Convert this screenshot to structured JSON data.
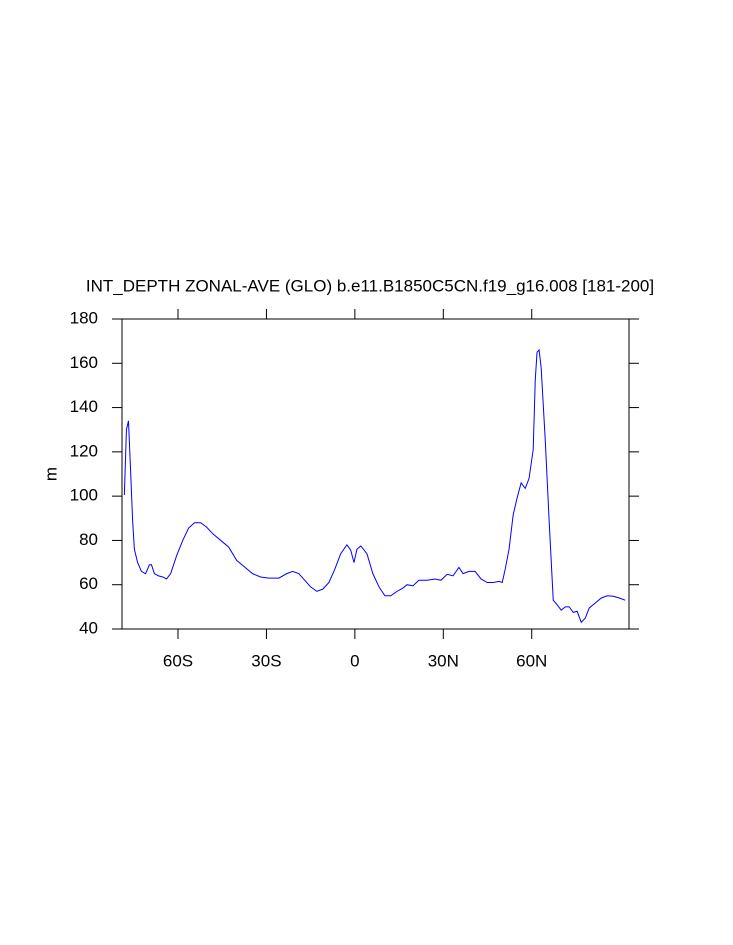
{
  "chart_data": {
    "type": "line",
    "title": "INT_DEPTH ZONAL-AVE (GLO) b.e11.B1850C5CN.f19_g16.008 [181-200]",
    "y_label": "m",
    "xlim": [
      -79,
      93
    ],
    "ylim": [
      40,
      180
    ],
    "xticks": [
      {
        "value": -60,
        "label": "60S"
      },
      {
        "value": -30,
        "label": "30S"
      },
      0,
      {
        "value": 30,
        "label": "30N"
      },
      {
        "value": 60,
        "label": "60N"
      }
    ],
    "yticks": [
      40,
      60,
      80,
      100,
      120,
      140,
      160,
      180
    ],
    "series": [
      {
        "color": "#0000ff",
        "x": [
          -78.2,
          -77.5,
          -76.8,
          -76.1,
          -75.4,
          -74.8,
          -73.7,
          -72.4,
          -71,
          -69.7,
          -69,
          -68,
          -66.6,
          -65.2,
          -63.9,
          -62.5,
          -60.5,
          -58.4,
          -56.4,
          -54.4,
          -52.3,
          -50.3,
          -48.2,
          -45.5,
          -42.8,
          -40.1,
          -37.4,
          -34.7,
          -32,
          -29.2,
          -25.8,
          -23.1,
          -21.1,
          -19,
          -17,
          -15,
          -12.9,
          -10.9,
          -8.8,
          -6.8,
          -4.8,
          -2.7,
          -1.4,
          -0.3,
          0.7,
          2,
          4.1,
          6.1,
          8.2,
          10.2,
          12.2,
          14.3,
          16.3,
          17.7,
          19.7,
          21.7,
          24.5,
          27.2,
          29.2,
          31.3,
          33.3,
          35.3,
          36.7,
          38.7,
          40.8,
          42.8,
          44.9,
          46.9,
          48.9,
          50,
          51,
          52.3,
          53.7,
          55,
          56.4,
          57.8,
          59.1,
          60.5,
          61.2,
          61.8,
          62.5,
          63.2,
          64.6,
          65.9,
          67.3,
          68.6,
          70,
          71.4,
          72.7,
          74.1,
          75.4,
          76.8,
          78.2,
          79.5,
          81.5,
          83.6,
          85.6,
          87.7,
          89.7,
          91.7
        ],
        "values": [
          100.5,
          130,
          134,
          112,
          89,
          76,
          70,
          66,
          65,
          69,
          69,
          65,
          64,
          63.5,
          62.6,
          65,
          73,
          80,
          85.6,
          88,
          88,
          86,
          83,
          80,
          77,
          71,
          68,
          65,
          63.5,
          63,
          63,
          65,
          66,
          65,
          62,
          59,
          57,
          58,
          61,
          67,
          74,
          78,
          75.6,
          70,
          76,
          77.5,
          74,
          65,
          59,
          55,
          55,
          57,
          58.5,
          60,
          59.5,
          62,
          62,
          62.6,
          62,
          64.7,
          64,
          67.8,
          65,
          66,
          66,
          62.6,
          61,
          61,
          61.5,
          61,
          67,
          76,
          91.5,
          99,
          106,
          103.5,
          108,
          121,
          152.5,
          165,
          166,
          158,
          125,
          89,
          53,
          51,
          48.5,
          50,
          50,
          47.5,
          48,
          43,
          45,
          49.5,
          51.7,
          54,
          55,
          54.8,
          54,
          53
        ]
      }
    ]
  }
}
